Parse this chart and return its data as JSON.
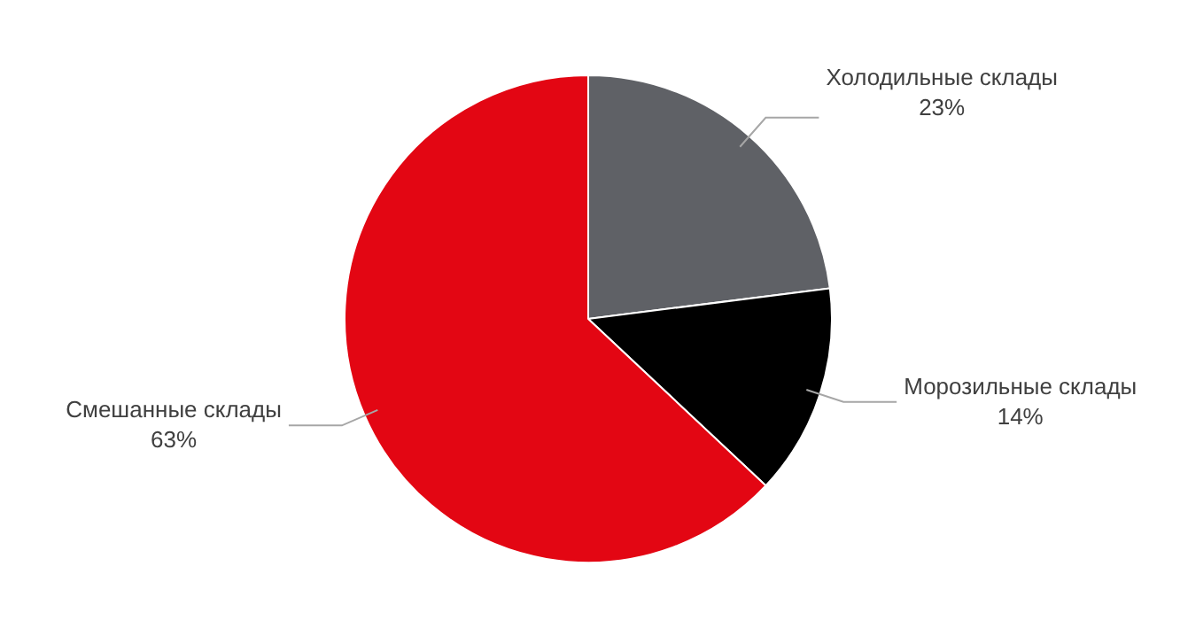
{
  "chart_data": {
    "type": "pie",
    "categories": [
      "Холодильные склады",
      "Морозильные склады",
      "Смешанные склады"
    ],
    "values": [
      23,
      14,
      63
    ],
    "colors": [
      "#5f6166",
      "#000000",
      "#e30613"
    ],
    "value_labels": [
      "23%",
      "14%",
      "63%"
    ],
    "legend": false
  }
}
